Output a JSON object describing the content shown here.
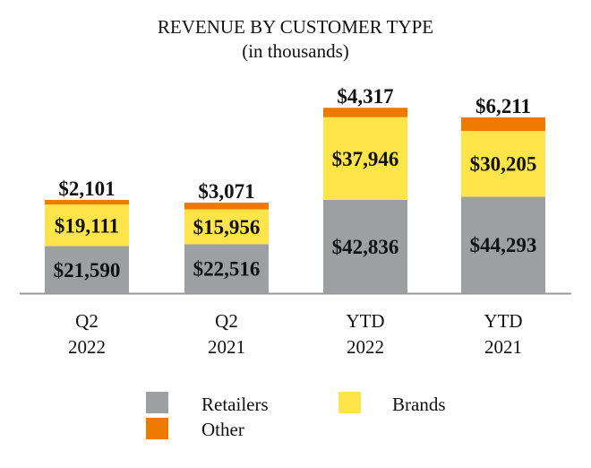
{
  "chart_data": {
    "type": "bar",
    "stacked": true,
    "title": "REVENUE BY CUSTOMER TYPE",
    "subtitle": "(in thousands)",
    "xlabel": "",
    "ylabel": "",
    "ylim": [
      0,
      100000
    ],
    "grid": false,
    "legend_position": "bottom",
    "categories": [
      [
        "Q2",
        "2022"
      ],
      [
        "Q2",
        "2021"
      ],
      [
        "YTD",
        "2022"
      ],
      [
        "YTD",
        "2021"
      ]
    ],
    "series": [
      {
        "name": "Retailers",
        "color": "#9D9FA0",
        "values": [
          21590,
          22516,
          42836,
          44293
        ],
        "labels": [
          "$21,590",
          "$22,516",
          "$42,836",
          "$44,293"
        ]
      },
      {
        "name": "Brands",
        "color": "#FFE54A",
        "values": [
          19111,
          15956,
          37946,
          30205
        ],
        "labels": [
          "$19,111",
          "$15,956",
          "$37,946",
          "$30,205"
        ]
      },
      {
        "name": "Other",
        "color": "#EE7A00",
        "values": [
          2101,
          3071,
          4317,
          6211
        ],
        "labels": [
          "$2,101",
          "$3,071",
          "$4,317",
          "$6,211"
        ]
      }
    ]
  }
}
